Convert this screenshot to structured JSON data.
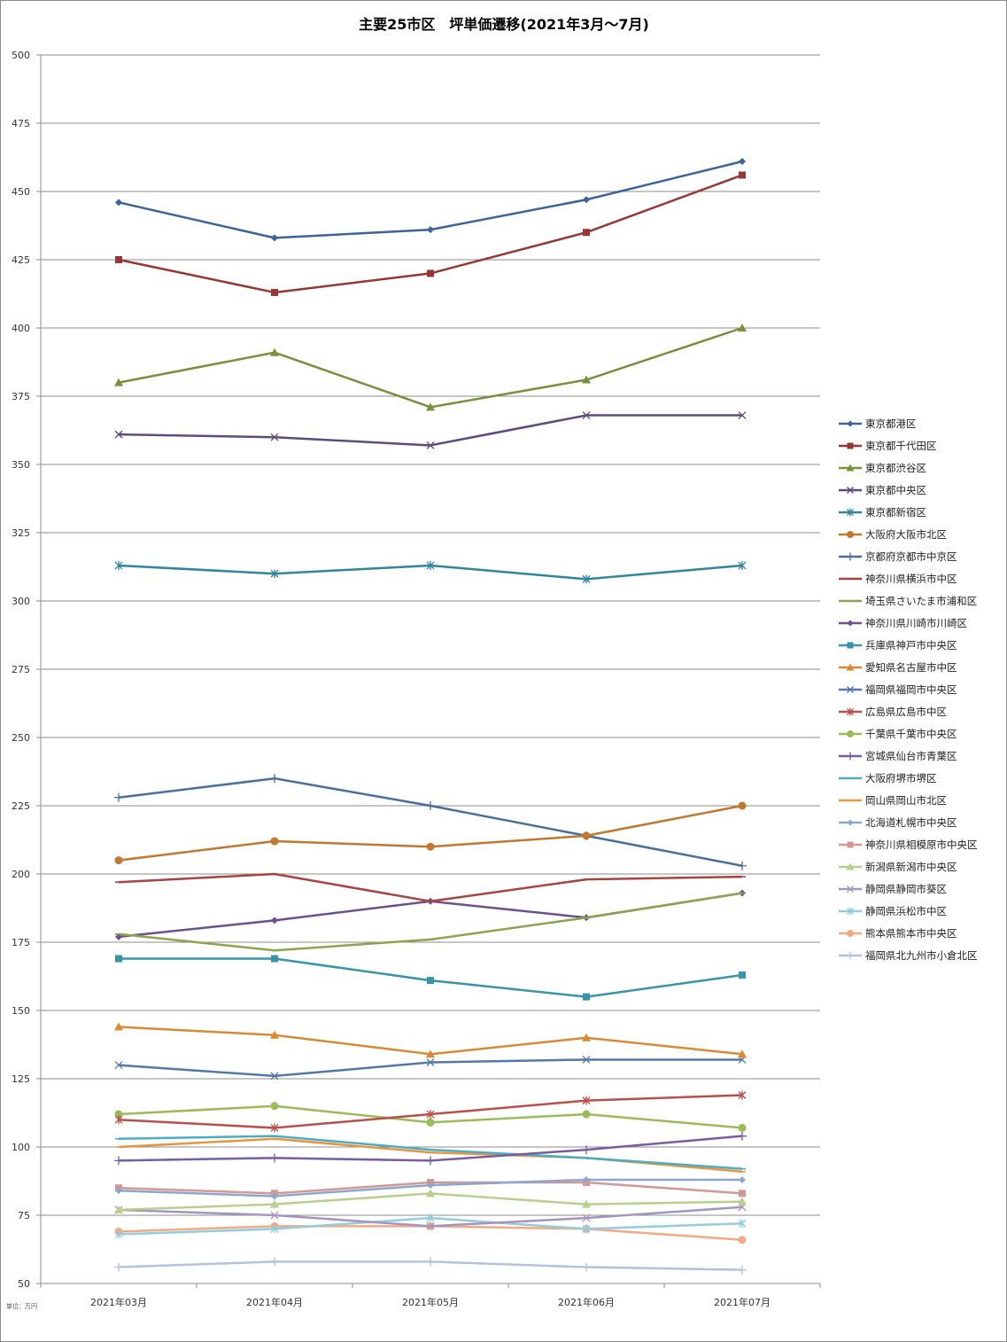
{
  "chart_data": {
    "type": "line",
    "title": "主要25市区　坪単価遷移(2021年3月～7月)",
    "unit_note": "単位：万円",
    "xlabel": "",
    "ylabel": "",
    "ylim": [
      50,
      500
    ],
    "y_ticks": [
      50,
      75,
      100,
      125,
      150,
      175,
      200,
      225,
      250,
      275,
      300,
      325,
      350,
      375,
      400,
      425,
      450,
      475,
      500
    ],
    "grid": true,
    "legend_position": "right",
    "categories": [
      "2021年03月",
      "2021年04月",
      "2021年05月",
      "2021年06月",
      "2021年07月"
    ],
    "series": [
      {
        "name": "東京都港区",
        "values": [
          446,
          433,
          436,
          447,
          461
        ],
        "color": "#3c6497",
        "marker": "diamond"
      },
      {
        "name": "東京都千代田区",
        "values": [
          425,
          413,
          420,
          435,
          456
        ],
        "color": "#953735",
        "marker": "square"
      },
      {
        "name": "東京都渋谷区",
        "values": [
          380,
          391,
          371,
          381,
          400
        ],
        "color": "#76923c",
        "marker": "triangle"
      },
      {
        "name": "東京都中央区",
        "values": [
          361,
          360,
          357,
          368,
          368
        ],
        "color": "#604a7b",
        "marker": "x"
      },
      {
        "name": "東京都新宿区",
        "values": [
          313,
          310,
          313,
          308,
          313
        ],
        "color": "#31859c",
        "marker": "star"
      },
      {
        "name": "大阪府大阪市北区",
        "values": [
          205,
          212,
          210,
          214,
          225
        ],
        "color": "#c0772f",
        "marker": "circle"
      },
      {
        "name": "京都府京都市中京区",
        "values": [
          228,
          235,
          225,
          214,
          203
        ],
        "color": "#4a6f9a",
        "marker": "plus"
      },
      {
        "name": "神奈川県横浜市中区",
        "values": [
          197,
          200,
          190,
          198,
          199
        ],
        "color": "#a84340",
        "marker": "dash"
      },
      {
        "name": "埼玉県さいたま市浦和区",
        "values": [
          178,
          172,
          176,
          184,
          193
        ],
        "color": "#8aa54e",
        "marker": "dash"
      },
      {
        "name": "神奈川県川崎市川崎区",
        "values": [
          177,
          183,
          190,
          184,
          193
        ],
        "color": "#6e4f8e",
        "marker": "diamond"
      },
      {
        "name": "兵庫県神戸市中央区",
        "values": [
          169,
          169,
          161,
          155,
          163
        ],
        "color": "#3a94a8",
        "marker": "square"
      },
      {
        "name": "愛知県名古屋市中区",
        "values": [
          144,
          141,
          134,
          140,
          134
        ],
        "color": "#d88a36",
        "marker": "triangle"
      },
      {
        "name": "福岡県福岡市中央区",
        "values": [
          130,
          126,
          131,
          132,
          132
        ],
        "color": "#5378a8",
        "marker": "x"
      },
      {
        "name": "広島県広島市中区",
        "values": [
          110,
          107,
          112,
          117,
          119
        ],
        "color": "#b84f4c",
        "marker": "star"
      },
      {
        "name": "千葉県千葉市中央区",
        "values": [
          112,
          115,
          109,
          112,
          107
        ],
        "color": "#9bbb59",
        "marker": "circle"
      },
      {
        "name": "宮城県仙台市青葉区",
        "values": [
          95,
          96,
          95,
          99,
          104
        ],
        "color": "#7b5c9e",
        "marker": "plus"
      },
      {
        "name": "大阪府堺市堺区",
        "values": [
          103,
          104,
          99,
          96,
          92
        ],
        "color": "#4bacc6",
        "marker": "dash"
      },
      {
        "name": "岡山県岡山市北区",
        "values": [
          100,
          103,
          98,
          96,
          91
        ],
        "color": "#e6963e",
        "marker": "dash"
      },
      {
        "name": "北海道札幌市中央区",
        "values": [
          84,
          82,
          86,
          88,
          88
        ],
        "color": "#8ea5cc",
        "marker": "diamond"
      },
      {
        "name": "神奈川県相模原市中央区",
        "values": [
          85,
          83,
          87,
          87,
          83
        ],
        "color": "#d29895",
        "marker": "square"
      },
      {
        "name": "新潟県新潟市中央区",
        "values": [
          77,
          79,
          83,
          79,
          80
        ],
        "color": "#b8d08e",
        "marker": "triangle"
      },
      {
        "name": "静岡県静岡市葵区",
        "values": [
          77,
          75,
          71,
          74,
          78
        ],
        "color": "#a594bf",
        "marker": "x"
      },
      {
        "name": "静岡県浜松市中区",
        "values": [
          68,
          70,
          74,
          70,
          72
        ],
        "color": "#93cddd",
        "marker": "star"
      },
      {
        "name": "熊本県熊本市中央区",
        "values": [
          69,
          71,
          71,
          70,
          66
        ],
        "color": "#f2aa84",
        "marker": "circle"
      },
      {
        "name": "福岡県北九州市小倉北区",
        "values": [
          56,
          58,
          58,
          56,
          55
        ],
        "color": "#b3c2dc",
        "marker": "plus"
      }
    ]
  }
}
